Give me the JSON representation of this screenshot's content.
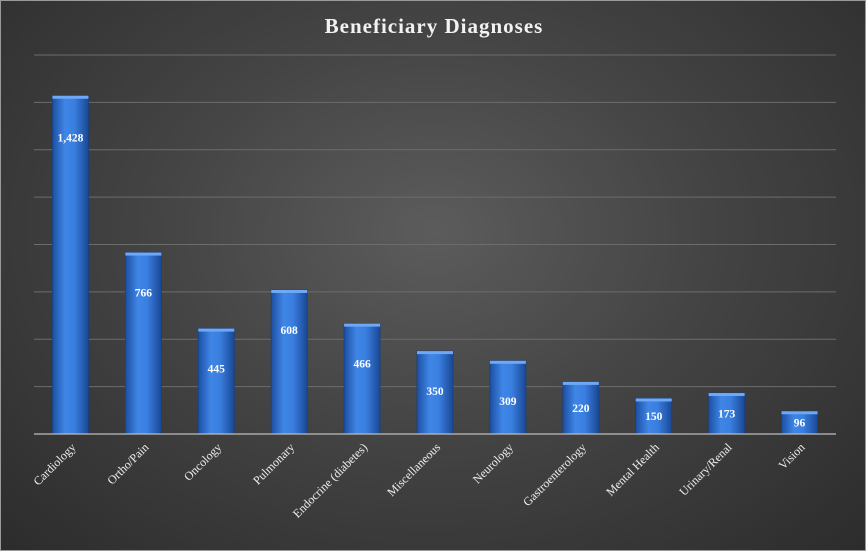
{
  "chart_data": {
    "type": "bar",
    "title": "Beneficiary Diagnoses",
    "xlabel": "",
    "ylabel": "",
    "categories": [
      "Cardiology",
      "Ortho/Pain",
      "Oncology",
      "Pulmonary",
      "Endocrine (diabetes)",
      "Miscellaneous",
      "Neurology",
      "Gastroenterology",
      "Mental Health",
      "Urinary/Renal",
      "Vision"
    ],
    "values": [
      1428,
      766,
      445,
      608,
      466,
      350,
      309,
      220,
      150,
      173,
      96
    ],
    "value_labels": [
      "1,428",
      "766",
      "445",
      "608",
      "466",
      "350",
      "309",
      "220",
      "150",
      "173",
      "96"
    ],
    "ylim": [
      0,
      1600
    ],
    "gridline_step": 200,
    "grid": true,
    "legend": "none",
    "bar_color": "#2f6fd0"
  }
}
